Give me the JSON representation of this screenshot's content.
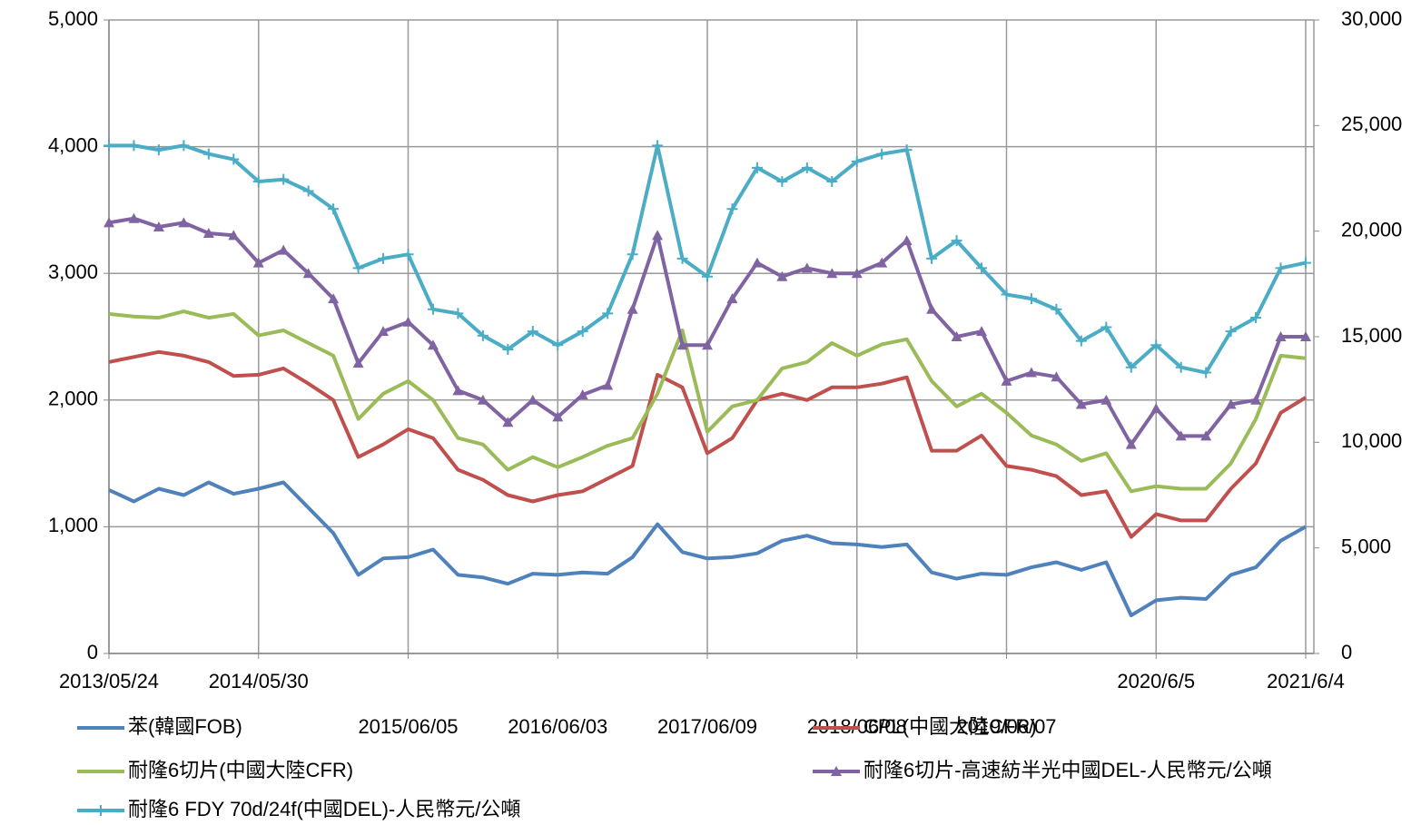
{
  "chart_data": {
    "type": "line",
    "categories": [
      "2013/05/24",
      null,
      null,
      null,
      null,
      null,
      "2014/05/30",
      null,
      null,
      null,
      null,
      null,
      "2015/06/05",
      null,
      null,
      null,
      null,
      null,
      "2016/06/03",
      null,
      null,
      null,
      null,
      null,
      "2017/06/09",
      null,
      null,
      null,
      null,
      null,
      "2018/06/08",
      null,
      null,
      null,
      null,
      null,
      "2019/06/07",
      null,
      null,
      null,
      null,
      null,
      "2020/6/5",
      null,
      null,
      null,
      null,
      null,
      "2021/6/4"
    ],
    "ylim": [
      0,
      5000
    ],
    "yticks": [
      0,
      {
        "value": 1000,
        "label": "1,000"
      },
      {
        "value": 2000,
        "label": "2,000"
      },
      {
        "value": 3000,
        "label": "3,000"
      },
      {
        "value": 4000,
        "label": "4,000"
      },
      {
        "value": 5000,
        "label": "5,000"
      }
    ],
    "y2lim": [
      0,
      30000
    ],
    "y2ticks": [
      0,
      {
        "value": 5000,
        "label": "5,000"
      },
      {
        "value": 10000,
        "label": "10,000"
      },
      {
        "value": 15000,
        "label": "15,000"
      },
      {
        "value": 20000,
        "label": "20,000"
      },
      {
        "value": 25000,
        "label": "25,000"
      },
      {
        "value": 30000,
        "label": "30,000"
      }
    ],
    "grid": true,
    "series": [
      {
        "name": "苯(韓國FOB)",
        "color": "#4f81bd",
        "values": [
          1290,
          1200,
          1300,
          1250,
          1350,
          1260,
          1300,
          1350,
          1150,
          950,
          620,
          750,
          760,
          820,
          620,
          600,
          550,
          630,
          620,
          640,
          630,
          760,
          1020,
          800,
          750,
          760,
          790,
          890,
          930,
          870,
          860,
          840,
          860,
          640,
          590,
          630,
          620,
          680,
          720,
          660,
          720,
          300,
          420,
          440,
          430,
          620,
          680,
          890,
          1000
        ]
      },
      {
        "name": "CPL(中國大陸CFR)",
        "color": "#c0504d",
        "values": [
          2300,
          2340,
          2380,
          2350,
          2300,
          2190,
          2200,
          2250,
          2130,
          2000,
          1550,
          1650,
          1770,
          1700,
          1450,
          1370,
          1250,
          1200,
          1250,
          1280,
          1380,
          1480,
          2200,
          2100,
          1580,
          1700,
          2000,
          2050,
          2000,
          2100,
          2100,
          2130,
          2180,
          1600,
          1600,
          1720,
          1480,
          1450,
          1400,
          1250,
          1280,
          920,
          1100,
          1050,
          1050,
          1300,
          1500,
          1900,
          2020
        ]
      },
      {
        "name": "耐隆6切片(中國大陸CFR)",
        "color": "#9bbb59",
        "values": [
          2680,
          2660,
          2650,
          2700,
          2650,
          2680,
          2510,
          2550,
          2450,
          2350,
          1850,
          2050,
          2150,
          2000,
          1700,
          1650,
          1450,
          1550,
          1470,
          1550,
          1640,
          1700,
          2050,
          2550,
          1750,
          1950,
          2000,
          2250,
          2300,
          2450,
          2350,
          2440,
          2480,
          2150,
          1950,
          2050,
          1900,
          1720,
          1650,
          1520,
          1580,
          1280,
          1320,
          1300,
          1300,
          1500,
          1850,
          2350,
          2330
        ]
      },
      {
        "name": "耐隆6切片-高速紡半光中國DEL-人民幣元/公噸",
        "color": "#8064a2",
        "axis": "y2",
        "marker": "triangle",
        "values": [
          20400,
          20600,
          20200,
          20400,
          19900,
          19800,
          18500,
          19100,
          18000,
          16800,
          13750,
          15250,
          15700,
          14600,
          12450,
          12000,
          10950,
          12000,
          11200,
          12250,
          12700,
          16300,
          19800,
          14600,
          14600,
          16800,
          18500,
          17850,
          18250,
          18000,
          18000,
          18500,
          19550,
          16300,
          15000,
          15250,
          12900,
          13300,
          13100,
          11800,
          12000,
          9900,
          11600,
          10300,
          10300,
          11800,
          12000,
          15000,
          15000
        ]
      },
      {
        "name": "耐隆6 FDY 70d/24f(中國DEL)-人民幣元/公噸",
        "color": "#4bacc6",
        "axis": "y2",
        "marker": "plus",
        "values": [
          24050,
          24050,
          23850,
          24050,
          23650,
          23400,
          22350,
          22450,
          21900,
          21050,
          18250,
          18700,
          18900,
          16300,
          16100,
          15050,
          14400,
          15250,
          14600,
          15250,
          16100,
          18900,
          24050,
          18700,
          17850,
          21050,
          23000,
          22350,
          23000,
          22350,
          23300,
          23650,
          23850,
          18700,
          19550,
          18250,
          17000,
          16800,
          16300,
          14800,
          15450,
          13550,
          14600,
          13550,
          13300,
          15250,
          15900,
          18250,
          18500
        ]
      }
    ]
  }
}
